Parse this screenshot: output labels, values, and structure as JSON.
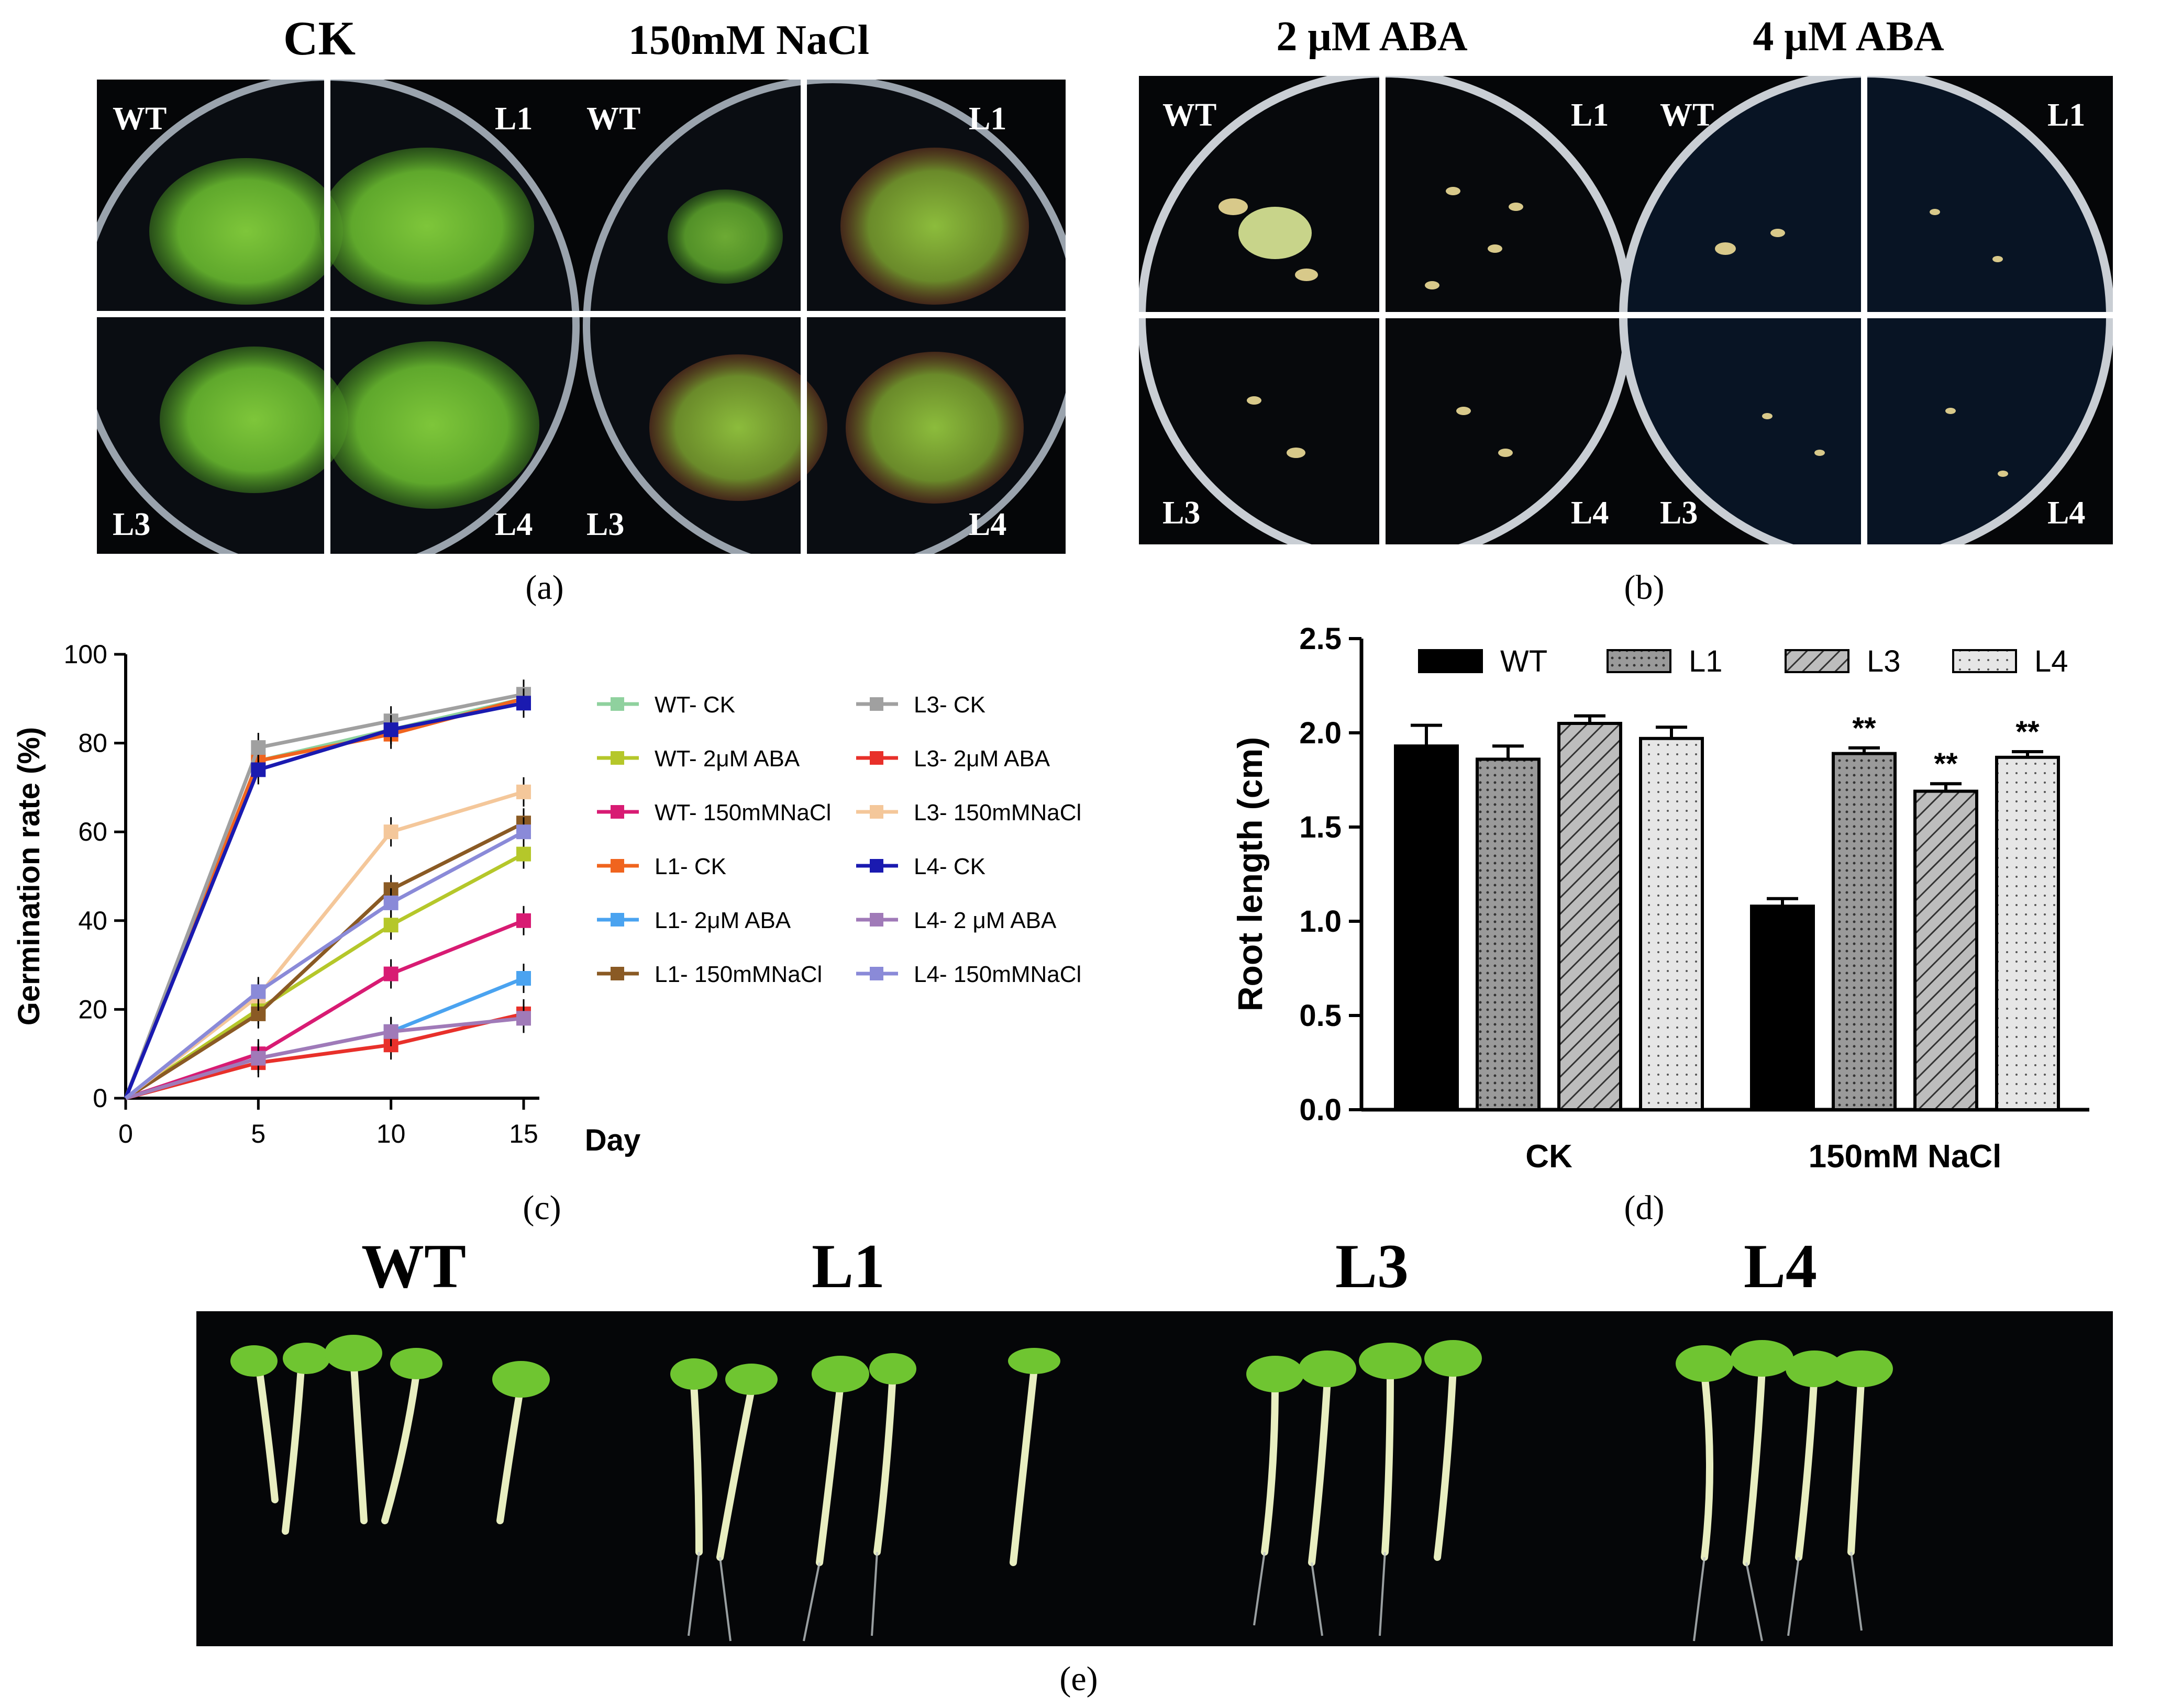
{
  "panel_a": {
    "titles": [
      "CK",
      "150mM NaCl"
    ],
    "quadrant_labels": [
      "WT",
      "L1",
      "L3",
      "L4"
    ],
    "label": "(a)"
  },
  "panel_b": {
    "titles": [
      "2 μM ABA",
      "4 μM ABA"
    ],
    "quadrant_labels": [
      "WT",
      "L1",
      "L3",
      "L4"
    ],
    "label": "(b)"
  },
  "panel_c": {
    "label": "(c)",
    "chart_data": {
      "type": "line",
      "ylabel": "Germination rate (%)",
      "xlabel": "Day",
      "x": [
        0,
        5,
        10,
        15
      ],
      "xticks": [
        0,
        5,
        10,
        15
      ],
      "yticks": [
        0,
        20,
        40,
        60,
        80,
        100
      ],
      "ylim": [
        0,
        100
      ],
      "xlim": [
        0,
        15
      ],
      "legend_placement": "right",
      "series": [
        {
          "name": "WT- CK",
          "color": "#8fd19e",
          "values": [
            0,
            76,
            83,
            90
          ]
        },
        {
          "name": "WT- 2μM ABA",
          "color": "#b5c72a",
          "values": [
            0,
            20,
            39,
            55
          ]
        },
        {
          "name": "WT- 150mMNaCl",
          "color": "#d81b73",
          "values": [
            0,
            10,
            28,
            40
          ]
        },
        {
          "name": "L1- CK",
          "color": "#f0641e",
          "values": [
            0,
            76,
            82,
            90
          ]
        },
        {
          "name": "L1- 2μM ABA",
          "color": "#4aa3f0",
          "values": [
            0,
            9,
            15,
            27
          ]
        },
        {
          "name": "L1- 150mMNaCl",
          "color": "#8a5a24",
          "values": [
            0,
            19,
            47,
            62
          ]
        },
        {
          "name": "L3- CK",
          "color": "#a0a0a0",
          "values": [
            0,
            79,
            85,
            91
          ]
        },
        {
          "name": "L3- 2μM ABA",
          "color": "#e8302a",
          "values": [
            0,
            8,
            12,
            19
          ]
        },
        {
          "name": "L3- 150mMNaCl",
          "color": "#f4c79a",
          "values": [
            0,
            23,
            60,
            69
          ]
        },
        {
          "name": "L4- CK",
          "color": "#1a1ab0",
          "values": [
            0,
            74,
            83,
            89
          ]
        },
        {
          "name": "L4- 2 μM ABA",
          "color": "#a07ab8",
          "values": [
            0,
            9,
            15,
            18
          ]
        },
        {
          "name": "L4- 150mMNaCl",
          "color": "#8a8ad8",
          "values": [
            0,
            24,
            44,
            60
          ]
        }
      ]
    }
  },
  "panel_d": {
    "label": "(d)",
    "chart_data": {
      "type": "bar",
      "ylabel": "Root length (cm)",
      "categories": [
        "CK",
        "150mM NaCl"
      ],
      "yticks": [
        "0.0",
        "0.5",
        "1.0",
        "1.5",
        "2.0",
        "2.5"
      ],
      "ylim": [
        0,
        2.5
      ],
      "legend_placement": "top",
      "series": [
        {
          "name": "WT",
          "values": [
            1.93,
            1.08
          ],
          "errors": [
            0.11,
            0.04
          ],
          "significance": [
            "",
            ""
          ]
        },
        {
          "name": "L1",
          "values": [
            1.86,
            1.89
          ],
          "errors": [
            0.07,
            0.03
          ],
          "significance": [
            "",
            "**"
          ]
        },
        {
          "name": "L3",
          "values": [
            2.05,
            1.69
          ],
          "errors": [
            0.04,
            0.04
          ],
          "significance": [
            "",
            "**"
          ]
        },
        {
          "name": "L4",
          "values": [
            1.97,
            1.87
          ],
          "errors": [
            0.06,
            0.03
          ],
          "significance": [
            "",
            "**"
          ]
        }
      ]
    }
  },
  "panel_e": {
    "titles": [
      "WT",
      "L1",
      "L3",
      "L4"
    ],
    "label": "(e)"
  }
}
